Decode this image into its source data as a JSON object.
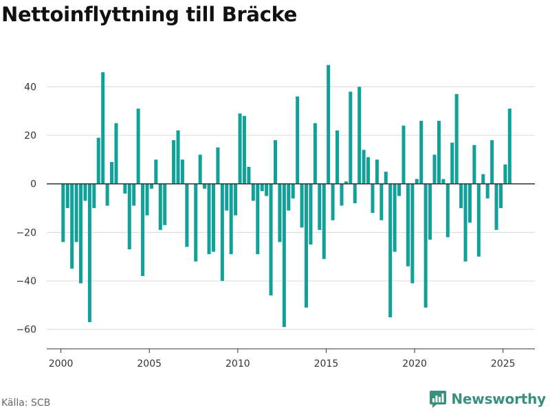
{
  "header": {
    "title": "Nettoinflyttning till Bräcke"
  },
  "footer": {
    "source": "Källa: SCB",
    "brand": "Newsworthy",
    "brand_icon": "newsworthy-logo-icon",
    "brand_color": "#3a8f7e"
  },
  "chart_data": {
    "type": "bar",
    "title": "Nettoinflyttning till Bräcke",
    "xlabel": "",
    "ylabel": "",
    "bar_color": "#10a19a",
    "frequency": "quarterly",
    "x_range": [
      1999.2,
      2026.8
    ],
    "ylim": [
      -68,
      52
    ],
    "yticks": [
      -60,
      -40,
      -20,
      0,
      20,
      40
    ],
    "xticks": [
      2000,
      2005,
      2010,
      2015,
      2020,
      2025
    ],
    "ytick_labels": [
      "−60",
      "−40",
      "−20",
      "0",
      "20",
      "40"
    ],
    "xtick_labels": [
      "2000",
      "2005",
      "2010",
      "2015",
      "2020",
      "2025"
    ],
    "grid": "horizontal",
    "legend": "none",
    "x": [
      "2000 Q1",
      "2000 Q2",
      "2000 Q3",
      "2000 Q4",
      "2001 Q1",
      "2001 Q2",
      "2001 Q3",
      "2001 Q4",
      "2002 Q1",
      "2002 Q2",
      "2002 Q3",
      "2002 Q4",
      "2003 Q1",
      "2003 Q2",
      "2003 Q3",
      "2003 Q4",
      "2004 Q1",
      "2004 Q2",
      "2004 Q3",
      "2004 Q4",
      "2005 Q1",
      "2005 Q2",
      "2005 Q3",
      "2005 Q4",
      "2006 Q1",
      "2006 Q2",
      "2006 Q3",
      "2006 Q4",
      "2007 Q1",
      "2007 Q2",
      "2007 Q3",
      "2007 Q4",
      "2008 Q1",
      "2008 Q2",
      "2008 Q3",
      "2008 Q4",
      "2009 Q1",
      "2009 Q2",
      "2009 Q3",
      "2009 Q4",
      "2010 Q1",
      "2010 Q2",
      "2010 Q3",
      "2010 Q4",
      "2011 Q1",
      "2011 Q2",
      "2011 Q3",
      "2011 Q4",
      "2012 Q1",
      "2012 Q2",
      "2012 Q3",
      "2012 Q4",
      "2013 Q1",
      "2013 Q2",
      "2013 Q3",
      "2013 Q4",
      "2014 Q1",
      "2014 Q2",
      "2014 Q3",
      "2014 Q4",
      "2015 Q1",
      "2015 Q2",
      "2015 Q3",
      "2015 Q4",
      "2016 Q1",
      "2016 Q2",
      "2016 Q3",
      "2016 Q4",
      "2017 Q1",
      "2017 Q2",
      "2017 Q3",
      "2017 Q4",
      "2018 Q1",
      "2018 Q2",
      "2018 Q3",
      "2018 Q4",
      "2019 Q1",
      "2019 Q2",
      "2019 Q3",
      "2019 Q4",
      "2020 Q1",
      "2020 Q2",
      "2020 Q3",
      "2020 Q4",
      "2021 Q1",
      "2021 Q2",
      "2021 Q3",
      "2021 Q4",
      "2022 Q1",
      "2022 Q2",
      "2022 Q3",
      "2022 Q4",
      "2023 Q1",
      "2023 Q2",
      "2023 Q3",
      "2023 Q4",
      "2024 Q1",
      "2024 Q2",
      "2024 Q3",
      "2024 Q4",
      "2025 Q1",
      "2025 Q2"
    ],
    "values": [
      -24,
      -10,
      -35,
      -24,
      -41,
      -7,
      -57,
      -10,
      19,
      46,
      -9,
      9,
      25,
      0,
      -4,
      -27,
      -9,
      31,
      -38,
      -13,
      -2,
      10,
      -19,
      -17,
      0,
      18,
      22,
      10,
      -26,
      0,
      -32,
      12,
      -2,
      -29,
      -28,
      15,
      -40,
      -11,
      -29,
      -13,
      29,
      28,
      7,
      -7,
      -29,
      -3,
      -5,
      -46,
      18,
      -24,
      -59,
      -11,
      -6,
      36,
      -18,
      -51,
      -25,
      25,
      -19,
      -31,
      49,
      -15,
      22,
      -9,
      1,
      38,
      -8,
      40,
      14,
      11,
      -12,
      10,
      -15,
      5,
      -55,
      -28,
      -5,
      24,
      -34,
      -41,
      2,
      26,
      -51,
      -23,
      12,
      26,
      2,
      -22,
      17,
      37,
      -10,
      -32,
      -16,
      16,
      -30,
      4,
      -6,
      18,
      -19,
      -10,
      8,
      31
    ]
  }
}
